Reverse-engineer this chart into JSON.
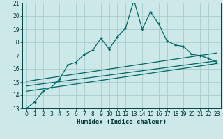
{
  "title": "",
  "xlabel": "Humidex (Indice chaleur)",
  "bg_color": "#cce8e8",
  "grid_color": "#aacccc",
  "line_color": "#006666",
  "xlim": [
    -0.5,
    23.5
  ],
  "ylim": [
    13,
    21
  ],
  "x_ticks": [
    0,
    1,
    2,
    3,
    4,
    5,
    6,
    7,
    8,
    9,
    10,
    11,
    12,
    13,
    14,
    15,
    16,
    17,
    18,
    19,
    20,
    21,
    22,
    23
  ],
  "y_ticks": [
    13,
    14,
    15,
    16,
    17,
    18,
    19,
    20,
    21
  ],
  "main_x": [
    0,
    1,
    2,
    3,
    4,
    5,
    6,
    7,
    8,
    9,
    10,
    11,
    12,
    13,
    14,
    15,
    16,
    17,
    18,
    19,
    20,
    21,
    22,
    23
  ],
  "main_y": [
    13.0,
    13.5,
    14.3,
    14.6,
    15.2,
    16.3,
    16.5,
    17.1,
    17.4,
    18.3,
    17.5,
    18.4,
    19.1,
    21.2,
    19.0,
    20.3,
    19.4,
    18.1,
    17.8,
    17.7,
    17.1,
    17.0,
    16.8,
    16.5
  ],
  "trend1_x": [
    0,
    23
  ],
  "trend1_y": [
    15.05,
    17.2
  ],
  "trend2_x": [
    0,
    23
  ],
  "trend2_y": [
    14.7,
    16.6
  ],
  "trend3_x": [
    0,
    23
  ],
  "trend3_y": [
    14.3,
    16.4
  ],
  "xlabel_fontsize": 6.5,
  "tick_fontsize": 5.5
}
